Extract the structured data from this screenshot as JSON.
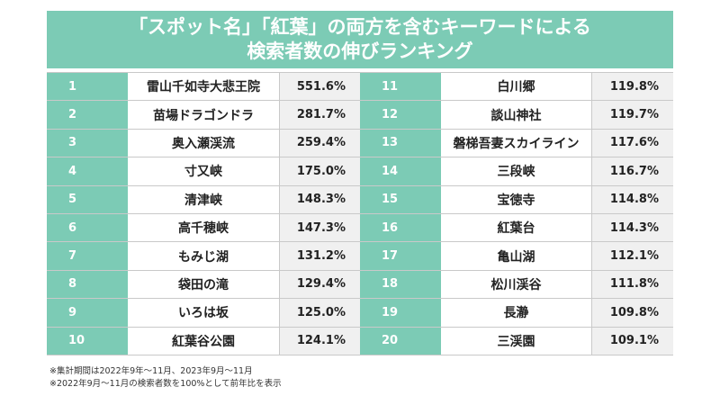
{
  "title": {
    "line1": "「スポット名」「紅葉」の両方を含むキーワードによる",
    "line2": "検索者数の伸びランキング"
  },
  "left_rows": [
    {
      "rank": "1",
      "name": "雷山千如寺大悲王院",
      "value": "551.6%"
    },
    {
      "rank": "2",
      "name": "苗場ドラゴンドラ",
      "value": "281.7%"
    },
    {
      "rank": "3",
      "name": "奥入瀬渓流",
      "value": "259.4%"
    },
    {
      "rank": "4",
      "name": "寸又峡",
      "value": "175.0%"
    },
    {
      "rank": "5",
      "name": "清津峡",
      "value": "148.3%"
    },
    {
      "rank": "6",
      "name": "高千穂峡",
      "value": "147.3%"
    },
    {
      "rank": "7",
      "name": "もみじ湖",
      "value": "131.2%"
    },
    {
      "rank": "8",
      "name": "袋田の滝",
      "value": "129.4%"
    },
    {
      "rank": "9",
      "name": "いろは坂",
      "value": "125.0%"
    },
    {
      "rank": "10",
      "name": "紅葉谷公園",
      "value": "124.1%"
    }
  ],
  "right_rows": [
    {
      "rank": "11",
      "name": "白川郷",
      "value": "119.8%"
    },
    {
      "rank": "12",
      "name": "談山神社",
      "value": "119.7%"
    },
    {
      "rank": "13",
      "name": "磐梯吾妻スカイライン",
      "value": "117.6%"
    },
    {
      "rank": "14",
      "name": "三段峡",
      "value": "116.7%"
    },
    {
      "rank": "15",
      "name": "宝徳寺",
      "value": "114.8%"
    },
    {
      "rank": "16",
      "name": "紅葉台",
      "value": "114.3%"
    },
    {
      "rank": "17",
      "name": "亀山湖",
      "value": "112.1%"
    },
    {
      "rank": "18",
      "name": "松川渓谷",
      "value": "111.8%"
    },
    {
      "rank": "19",
      "name": "長瀞",
      "value": "109.8%"
    },
    {
      "rank": "20",
      "name": "三渓園",
      "value": "109.1%"
    }
  ],
  "notes": {
    "note1": "※集計期間は2022年9年～11月、2023年9月～11月",
    "note2": "※2022年9月～11月の検索者数を100%として前年比を表示"
  },
  "colors": {
    "accent": "#7ccbb5",
    "value_bg": "#f0f0f0",
    "border": "#c9c9c9"
  }
}
